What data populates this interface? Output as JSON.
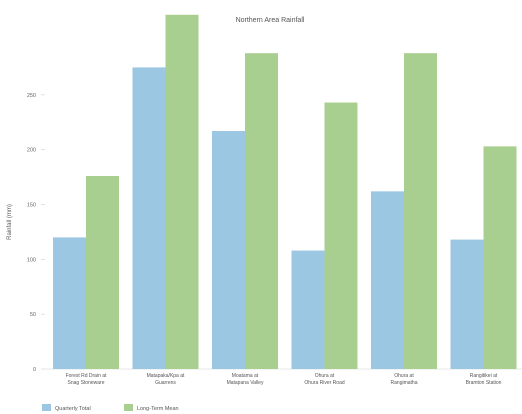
{
  "chart_data": {
    "type": "bar",
    "title": "Northern Area Rainfall",
    "ylabel": "Rainfall (mm)",
    "xlabel": "",
    "ylim": [
      0,
      300
    ],
    "y_ticks": [
      0,
      50,
      100,
      150,
      200,
      250
    ],
    "grid": false,
    "legend_position": "bottom-left",
    "categories": [
      [
        "Forest Rd Drain at",
        "Snag Stoneware"
      ],
      [
        "Matapaka/Kpa at",
        "Guarrens"
      ],
      [
        "Moatama at",
        "Matapana Valley"
      ],
      [
        "Ohura at",
        "Ohura River Road"
      ],
      [
        "Ohura at",
        "Rangimatha"
      ],
      [
        "Rangitikei at",
        "Bramton Station"
      ]
    ],
    "series": [
      {
        "name": "Quarterly Total",
        "color": "#9cc7e2",
        "values": [
          120,
          275,
          217,
          108,
          162,
          118
        ]
      },
      {
        "name": "Long-Term Mean",
        "color": "#a9cf90",
        "values": [
          176,
          323,
          288,
          243,
          288,
          203
        ]
      }
    ]
  }
}
